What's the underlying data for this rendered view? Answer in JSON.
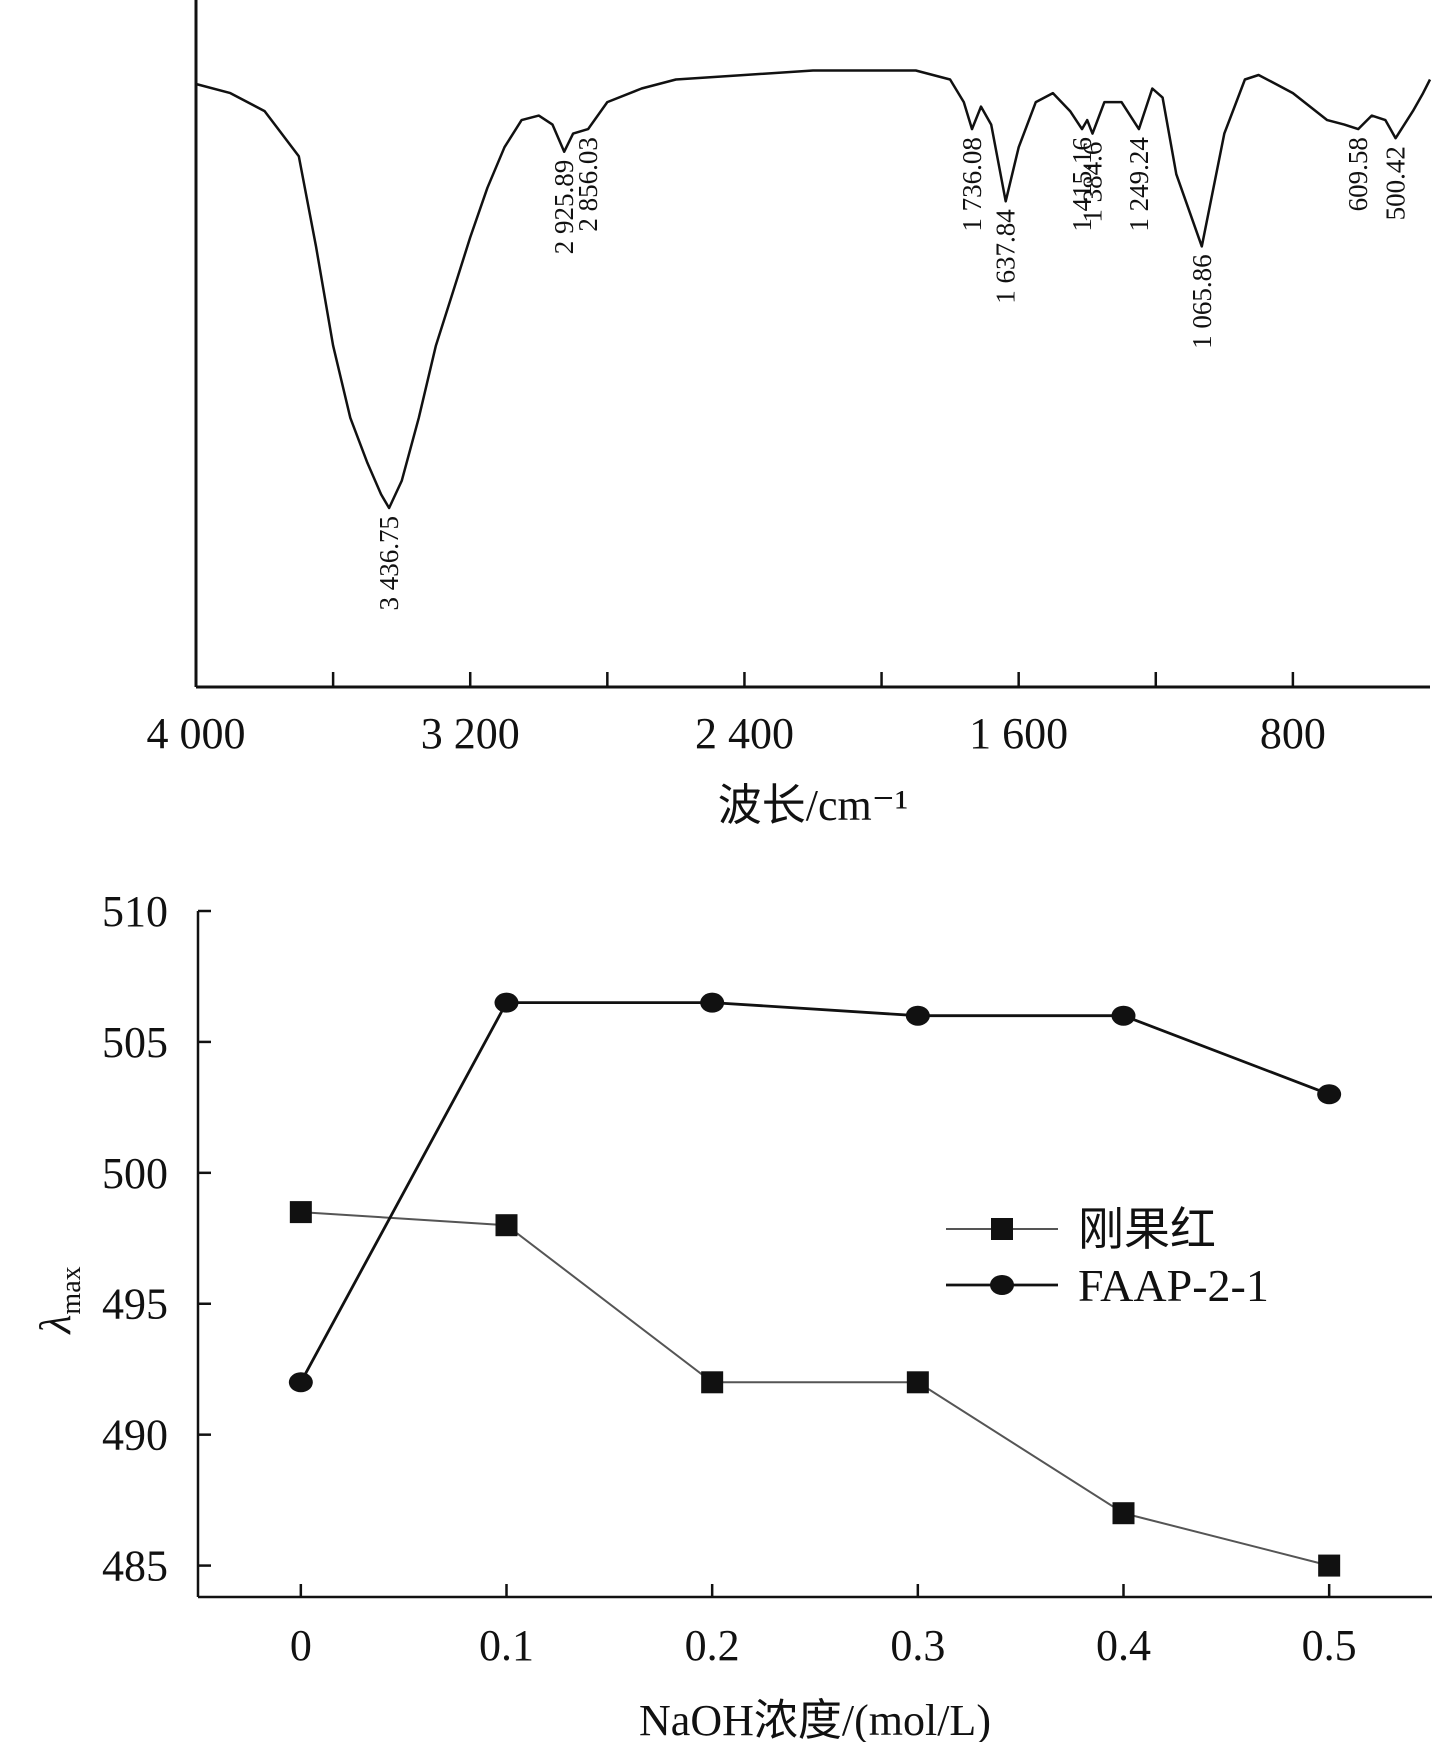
{
  "chart_data": [
    {
      "type": "line",
      "title": "",
      "xlabel": "波长/cm⁻¹",
      "ylabel": "",
      "xlim": [
        4000,
        400
      ],
      "x_reversed": true,
      "x_ticks": [
        4000,
        3600,
        3200,
        2800,
        2400,
        2000,
        1600,
        1200,
        800
      ],
      "x_tick_labels": [
        "4 000",
        "",
        "3 200",
        "",
        "2 400",
        "",
        "1 600",
        "",
        "800"
      ],
      "grid": false,
      "series": [
        {
          "x": [
            4000,
            3900,
            3800,
            3700,
            3650,
            3600,
            3550,
            3500,
            3460,
            3436.75,
            3400,
            3350,
            3300,
            3250,
            3200,
            3150,
            3100,
            3050,
            3000,
            2960,
            2925.89,
            2900,
            2856.03,
            2800,
            2700,
            2600,
            2400,
            2200,
            2100,
            2000,
            1900,
            1800,
            1760,
            1736.08,
            1710,
            1680,
            1637.84,
            1600,
            1550,
            1500,
            1450,
            1415.16,
            1400,
            1384.6,
            1350,
            1300,
            1249.24,
            1210,
            1180,
            1140,
            1065.86,
            1000,
            940,
            900,
            850,
            800,
            700,
            650,
            609.58,
            570,
            530,
            500.42,
            450,
            420,
            400
          ],
          "y": [
            0.04,
            0.06,
            0.1,
            0.2,
            0.4,
            0.62,
            0.78,
            0.88,
            0.95,
            0.98,
            0.92,
            0.78,
            0.62,
            0.5,
            0.38,
            0.27,
            0.18,
            0.12,
            0.11,
            0.13,
            0.19,
            0.15,
            0.14,
            0.08,
            0.05,
            0.03,
            0.02,
            0.01,
            0.01,
            0.01,
            0.01,
            0.03,
            0.08,
            0.14,
            0.09,
            0.13,
            0.3,
            0.18,
            0.08,
            0.06,
            0.1,
            0.14,
            0.12,
            0.15,
            0.08,
            0.08,
            0.14,
            0.05,
            0.07,
            0.24,
            0.4,
            0.15,
            0.03,
            0.02,
            0.04,
            0.06,
            0.12,
            0.13,
            0.14,
            0.11,
            0.12,
            0.16,
            0.1,
            0.06,
            0.03
          ]
        }
      ],
      "annotations": [
        {
          "x": 3436.75,
          "text": "3 436.75"
        },
        {
          "x": 2925.89,
          "text": "2 925.89"
        },
        {
          "x": 2856.03,
          "text": "2 856.03"
        },
        {
          "x": 1736.08,
          "text": "1 736.08"
        },
        {
          "x": 1637.84,
          "text": "1 637.84"
        },
        {
          "x": 1415.16,
          "text": "1 415.16"
        },
        {
          "x": 1384.6,
          "text": "1 384.6"
        },
        {
          "x": 1249.24,
          "text": "1 249.24"
        },
        {
          "x": 1065.86,
          "text": "1 065.86"
        },
        {
          "x": 609.58,
          "text": "609.58"
        },
        {
          "x": 500.42,
          "text": "500.42"
        }
      ]
    },
    {
      "type": "line",
      "title": "",
      "xlabel": "NaOH浓度/(mol/L)",
      "ylabel": "λ",
      "ylabel_sub": "max",
      "xlim": [
        -0.05,
        0.55
      ],
      "ylim": [
        483.8,
        510
      ],
      "x_ticks": [
        0,
        0.1,
        0.2,
        0.3,
        0.4,
        0.5
      ],
      "x_tick_labels": [
        "0",
        "0.1",
        "0.2",
        "0.3",
        "0.4",
        "0.5"
      ],
      "y_ticks": [
        485,
        490,
        495,
        500,
        505,
        510
      ],
      "y_tick_labels": [
        "485",
        "490",
        "495",
        "500",
        "505",
        "510"
      ],
      "grid": false,
      "legend": "center-right",
      "x": [
        0,
        0.1,
        0.2,
        0.3,
        0.4,
        0.5
      ],
      "series": [
        {
          "name": "刚果红",
          "marker": "square",
          "color": "#555555",
          "values": [
            498.5,
            498.0,
            492.0,
            492.0,
            487.0,
            485.0
          ]
        },
        {
          "name": "FAAP-2-1",
          "marker": "circle",
          "color": "#111111",
          "values": [
            492.0,
            506.5,
            506.5,
            506.0,
            506.0,
            503.0
          ]
        }
      ]
    }
  ]
}
